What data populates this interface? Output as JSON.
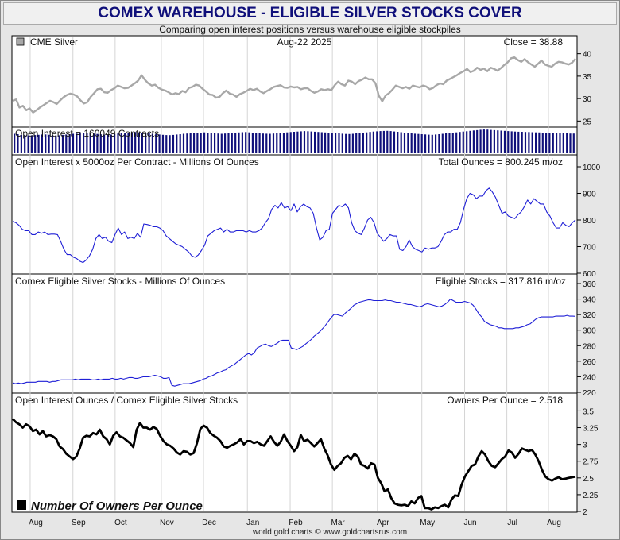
{
  "header": {
    "title": "COMEX WAREHOUSE - ELIGIBLE SILVER STOCKS COVER",
    "subtitle": "Comparing open interest positions versus warehouse eligible stockpiles"
  },
  "footer": {
    "credit": "world gold charts © www.goldchartsrus.com"
  },
  "legend": {
    "owners_label": "Number Of Owners Per Ounce"
  },
  "colors": {
    "price": "#a8a8a8",
    "oi_bars": "#10107a",
    "series_line": "#1f1fd6",
    "owners": "#000000"
  },
  "chart_data": [
    {
      "type": "line",
      "panel": "price",
      "label": "CME Silver",
      "date_label": "Aug-22  2025",
      "readout": "Close = 38.88",
      "ylim": [
        24,
        41
      ],
      "yticks": [
        "25",
        "30",
        "35",
        "40"
      ],
      "ytick_values": [
        25,
        30,
        35,
        40
      ],
      "values": [
        29.5,
        29.8,
        28.0,
        28.4,
        27.4,
        27.8,
        26.9,
        27.4,
        28.0,
        28.5,
        29.0,
        29.5,
        29.2,
        28.8,
        29.6,
        30.3,
        30.8,
        31.1,
        30.9,
        30.5,
        29.6,
        28.9,
        29.2,
        30.4,
        31.2,
        32.1,
        32.2,
        31.4,
        31.3,
        31.9,
        32.3,
        32.9,
        32.6,
        32.3,
        32.4,
        32.9,
        33.4,
        34.0,
        35.2,
        34.2,
        33.4,
        32.9,
        33.1,
        32.4,
        32.0,
        31.8,
        31.4,
        30.9,
        31.2,
        31.0,
        31.7,
        31.4,
        32.4,
        32.6,
        33.1,
        32.9,
        32.2,
        31.6,
        30.9,
        30.8,
        30.2,
        30.4,
        31.2,
        31.8,
        31.1,
        30.9,
        30.4,
        31.0,
        31.3,
        31.7,
        32.2,
        31.9,
        32.2,
        31.6,
        31.2,
        31.7,
        32.1,
        32.6,
        32.8,
        33.0,
        32.5,
        32.4,
        32.7,
        32.5,
        32.6,
        32.1,
        32.3,
        32.3,
        31.7,
        31.3,
        31.6,
        32.1,
        31.9,
        32.1,
        31.9,
        33.0,
        33.8,
        33.2,
        32.9,
        34.0,
        33.8,
        33.2,
        33.9,
        34.2,
        34.7,
        34.3,
        34.3,
        33.4,
        30.6,
        29.4,
        30.7,
        31.2,
        32.0,
        32.9,
        32.6,
        32.3,
        32.6,
        32.2,
        32.9,
        32.7,
        32.5,
        32.9,
        32.7,
        32.1,
        32.4,
        33.0,
        33.4,
        33.2,
        34.0,
        34.4,
        34.8,
        35.2,
        35.7,
        36.1,
        36.6,
        35.9,
        36.2,
        36.9,
        36.4,
        36.7,
        36.1,
        36.9,
        36.6,
        36.2,
        36.8,
        37.5,
        38.1,
        39.0,
        39.2,
        38.6,
        38.2,
        38.8,
        38.1,
        37.6,
        37.1,
        37.8,
        38.5,
        37.6,
        37.3,
        37.1,
        37.8,
        38.2,
        38.1,
        37.8,
        37.6,
        38.0,
        38.88
      ]
    },
    {
      "type": "bar",
      "panel": "open_interest_contracts",
      "readout": "Open Interest = 160049 Contracts",
      "ylim": [
        0,
        200000
      ],
      "values": [
        158000,
        155000,
        149000,
        147000,
        145000,
        146000,
        148000,
        150000,
        152000,
        153000,
        150000,
        147000,
        144000,
        146000,
        149000,
        152000,
        155000,
        158000,
        160000,
        162000,
        164000,
        166000,
        163000,
        160000,
        157000,
        154000,
        151000,
        150000,
        152000,
        156000,
        160000,
        163000,
        166000,
        168000,
        170000,
        172000,
        170000,
        167000,
        164000,
        161000,
        158000,
        155000,
        152000,
        150000,
        148000,
        147000,
        149000,
        152000,
        155000,
        158000,
        160000,
        162000,
        164000,
        166000,
        168000,
        170000,
        168000,
        165000,
        162000,
        160000,
        158000,
        160000,
        163000,
        165000,
        167000,
        169000,
        171000,
        172000,
        170000,
        168000,
        165000,
        162000,
        160000,
        159000,
        158000,
        160000,
        163000,
        166000,
        168000,
        170000,
        172000,
        174000,
        176000,
        178000,
        180000,
        179000,
        177000,
        175000,
        173000,
        171000,
        169000,
        167000,
        165000,
        163000,
        161000,
        159000,
        157000,
        156000,
        158000,
        161000,
        164000,
        167000,
        170000,
        173000,
        176000,
        178000,
        180000,
        181000,
        182000,
        180000,
        177000,
        174000,
        171000,
        168000,
        165000,
        162000,
        159000,
        157000,
        155000,
        153000,
        151000,
        150000,
        152000,
        155000,
        158000,
        161000,
        164000,
        167000,
        170000,
        173000,
        176000,
        179000,
        182000,
        185000,
        188000,
        191000,
        193000,
        192000,
        190000,
        188000,
        186000,
        184000,
        182000,
        180000,
        178000,
        176000,
        175000,
        174000,
        173000,
        172000,
        171000,
        170000,
        169000,
        168000,
        167000,
        166000,
        165000,
        164000,
        163000,
        162000,
        161000,
        160000,
        160049
      ]
    },
    {
      "type": "line",
      "panel": "total_ounces",
      "label": "Open Interest x 5000oz Per Contract - Millions Of Ounces",
      "readout": "Total Ounces = 800.245 m/oz",
      "ylim": [
        600,
        1000
      ],
      "yticks": [
        "600",
        "700",
        "800",
        "900",
        "1000"
      ],
      "ytick_values": [
        600,
        700,
        800,
        900,
        1000
      ],
      "values": [
        795,
        790,
        780,
        765,
        760,
        760,
        745,
        745,
        755,
        750,
        755,
        745,
        747,
        747,
        745,
        720,
        690,
        670,
        670,
        660,
        655,
        645,
        640,
        650,
        665,
        690,
        730,
        745,
        730,
        735,
        720,
        715,
        745,
        770,
        745,
        755,
        730,
        735,
        730,
        750,
        735,
        785,
        783,
        780,
        775,
        775,
        770,
        760,
        740,
        730,
        720,
        710,
        705,
        700,
        690,
        680,
        665,
        660,
        668,
        685,
        705,
        740,
        750,
        760,
        765,
        770,
        755,
        765,
        755,
        755,
        760,
        760,
        760,
        755,
        760,
        755,
        755,
        760,
        770,
        790,
        805,
        840,
        855,
        845,
        865,
        845,
        850,
        835,
        860,
        830,
        850,
        860,
        850,
        845,
        825,
        770,
        725,
        735,
        760,
        765,
        825,
        840,
        855,
        850,
        860,
        845,
        790,
        760,
        750,
        745,
        770,
        800,
        810,
        790,
        750,
        735,
        720,
        730,
        745,
        740,
        740,
        690,
        685,
        700,
        725,
        700,
        690,
        685,
        680,
        695,
        690,
        695,
        695,
        700,
        720,
        745,
        755,
        755,
        765,
        765,
        790,
        840,
        880,
        900,
        895,
        880,
        890,
        890,
        910,
        920,
        905,
        885,
        855,
        825,
        830,
        815,
        810,
        805,
        820,
        830,
        850,
        875,
        860,
        880,
        870,
        860,
        860,
        830,
        815,
        790,
        770,
        770,
        790,
        780,
        775,
        790,
        800.245
      ]
    },
    {
      "type": "line",
      "panel": "eligible_stocks",
      "label": "Comex Eligible Silver Stocks - Millions Of Ounces",
      "readout": "Eligible Stocks = 317.816 m/oz",
      "ylim": [
        220,
        360
      ],
      "yticks": [
        "220",
        "240",
        "260",
        "280",
        "300",
        "320",
        "340",
        "360"
      ],
      "ytick_values": [
        220,
        240,
        260,
        280,
        300,
        320,
        340,
        360
      ],
      "values": [
        232,
        231,
        232,
        231,
        232,
        233,
        233,
        233,
        233,
        234,
        234,
        234,
        234,
        233,
        234,
        234,
        235,
        236,
        236,
        236,
        236,
        236,
        237,
        236,
        237,
        237,
        237,
        237,
        236,
        236,
        237,
        236,
        237,
        237,
        237,
        238,
        237,
        237,
        238,
        237,
        238,
        239,
        239,
        238,
        238,
        239,
        240,
        240,
        240,
        241,
        242,
        241,
        240,
        238,
        238,
        239,
        229,
        228,
        229,
        230,
        231,
        231,
        231,
        232,
        233,
        234,
        235,
        237,
        238,
        240,
        241,
        243,
        245,
        246,
        248,
        249,
        252,
        254,
        256,
        259,
        262,
        265,
        268,
        270,
        268,
        271,
        277,
        279,
        281,
        282,
        280,
        279,
        281,
        283,
        286,
        287,
        287,
        287,
        277,
        276,
        275,
        277,
        279,
        282,
        285,
        288,
        292,
        295,
        298,
        302,
        306,
        311,
        316,
        320,
        320,
        319,
        318,
        322,
        325,
        328,
        332,
        334,
        336,
        337,
        338,
        339,
        339,
        338,
        338,
        338,
        338,
        339,
        338,
        338,
        337,
        336,
        336,
        335,
        334,
        333,
        333,
        332,
        331,
        330,
        331,
        333,
        334,
        333,
        332,
        331,
        330,
        331,
        333,
        336,
        340,
        338,
        336,
        336,
        336,
        337,
        336,
        335,
        332,
        327,
        321,
        317,
        311,
        309,
        307,
        306,
        305,
        303,
        303,
        302,
        302,
        302,
        302,
        303,
        303,
        304,
        305,
        307,
        308,
        311,
        314,
        316,
        317,
        317,
        317,
        317,
        317,
        318,
        318,
        318,
        318,
        319,
        318,
        318,
        317.816
      ]
    },
    {
      "type": "line",
      "panel": "owners_per_ounce",
      "label": "Open Interest Ounces / Comex Eligible Silver Stocks",
      "readout": "Owners Per Ounce = 2.518",
      "ylim": [
        2.0,
        3.6
      ],
      "yticks": [
        "2",
        "2.25",
        "2.5",
        "2.75",
        "3",
        "3.25",
        "3.5"
      ],
      "ytick_values": [
        2.0,
        2.25,
        2.5,
        2.75,
        3.0,
        3.25,
        3.5
      ],
      "values": [
        3.38,
        3.33,
        3.3,
        3.25,
        3.3,
        3.27,
        3.2,
        3.22,
        3.15,
        3.2,
        3.12,
        3.14,
        3.12,
        3.08,
        2.97,
        2.93,
        2.86,
        2.82,
        2.78,
        2.82,
        2.94,
        3.1,
        3.13,
        3.12,
        3.17,
        3.15,
        3.22,
        3.12,
        3.08,
        3.0,
        3.13,
        3.18,
        3.12,
        3.1,
        3.06,
        3.02,
        2.96,
        3.22,
        3.32,
        3.25,
        3.25,
        3.22,
        3.26,
        3.23,
        3.13,
        3.05,
        3.0,
        2.98,
        2.94,
        2.88,
        2.85,
        2.9,
        2.89,
        2.85,
        2.87,
        3.02,
        3.23,
        3.28,
        3.25,
        3.17,
        3.13,
        3.1,
        3.05,
        2.97,
        2.95,
        2.98,
        3.0,
        3.03,
        3.08,
        3.0,
        3.05,
        3.05,
        3.02,
        3.04,
        3.0,
        2.98,
        3.05,
        3.12,
        3.04,
        2.98,
        3.04,
        3.15,
        3.05,
        2.98,
        2.9,
        2.96,
        3.14,
        3.05,
        3.07,
        3.02,
        2.97,
        3.02,
        3.08,
        2.94,
        2.84,
        2.7,
        2.62,
        2.68,
        2.72,
        2.8,
        2.83,
        2.78,
        2.86,
        2.82,
        2.7,
        2.68,
        2.64,
        2.72,
        2.7,
        2.5,
        2.42,
        2.3,
        2.33,
        2.2,
        2.12,
        2.1,
        2.09,
        2.1,
        2.08,
        2.15,
        2.12,
        2.2,
        2.23,
        2.05,
        2.05,
        2.03,
        2.06,
        2.05,
        2.08,
        2.1,
        2.06,
        2.18,
        2.24,
        2.23,
        2.4,
        2.52,
        2.6,
        2.68,
        2.7,
        2.82,
        2.9,
        2.85,
        2.75,
        2.68,
        2.66,
        2.72,
        2.78,
        2.82,
        2.91,
        2.88,
        2.8,
        2.86,
        2.94,
        2.92,
        2.9,
        2.92,
        2.85,
        2.75,
        2.62,
        2.52,
        2.48,
        2.46,
        2.49,
        2.51,
        2.48,
        2.49,
        2.5,
        2.51,
        2.518
      ]
    }
  ],
  "x_axis": {
    "month_labels": [
      "Aug",
      "Sep",
      "Oct",
      "Nov",
      "Dec",
      "Jan",
      "Feb",
      "Mar",
      "Apr",
      "May",
      "Jun",
      "Jul",
      "Aug"
    ],
    "month_positions": [
      0.031,
      0.107,
      0.182,
      0.264,
      0.339,
      0.417,
      0.493,
      0.568,
      0.648,
      0.727,
      0.803,
      0.878,
      0.952
    ]
  }
}
